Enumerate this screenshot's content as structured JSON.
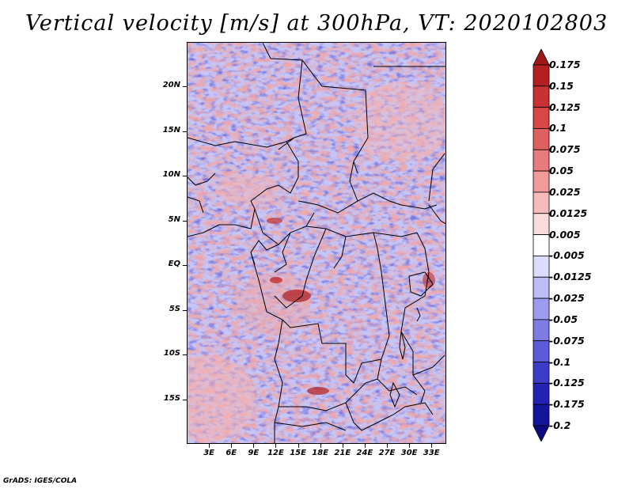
{
  "title": "Vertical velocity [m/s] at 300hPa, VT: 2020102803",
  "credit": "GrADS: IGES/COLA",
  "map": {
    "projection": "lat-lon",
    "lon_range": [
      0,
      35
    ],
    "lat_range": [
      -20,
      25
    ],
    "variable": "Vertical velocity",
    "units": "m/s",
    "level": "300hPa",
    "valid_time": "2020102803"
  },
  "y_ticks": [
    {
      "label": "20N",
      "lat": 20
    },
    {
      "label": "15N",
      "lat": 15
    },
    {
      "label": "10N",
      "lat": 10
    },
    {
      "label": "5N",
      "lat": 5
    },
    {
      "label": "EQ",
      "lat": 0
    },
    {
      "label": "5S",
      "lat": -5
    },
    {
      "label": "10S",
      "lat": -10
    },
    {
      "label": "15S",
      "lat": -15
    }
  ],
  "x_ticks": [
    {
      "label": "3E",
      "lon": 3
    },
    {
      "label": "6E",
      "lon": 6
    },
    {
      "label": "9E",
      "lon": 9
    },
    {
      "label": "12E",
      "lon": 12
    },
    {
      "label": "15E",
      "lon": 15
    },
    {
      "label": "18E",
      "lon": 18
    },
    {
      "label": "21E",
      "lon": 21
    },
    {
      "label": "24E",
      "lon": 24
    },
    {
      "label": "27E",
      "lon": 27
    },
    {
      "label": "30E",
      "lon": 30
    },
    {
      "label": "33E",
      "lon": 33
    }
  ],
  "colorbar": {
    "levels": [
      "0.175",
      "0.15",
      "0.125",
      "0.1",
      "0.075",
      "0.05",
      "0.025",
      "0.0125",
      "0.005",
      "-0.005",
      "-0.0125",
      "-0.025",
      "-0.05",
      "-0.075",
      "-0.1",
      "-0.125",
      "-0.175",
      "-0.2"
    ],
    "colors": [
      "#a01818",
      "#b42020",
      "#c83232",
      "#d84646",
      "#e06060",
      "#e87c7c",
      "#f09a9a",
      "#f6bcbc",
      "#fbdcdc",
      "#ffffff",
      "#dcdcff",
      "#bcbcf8",
      "#9c9cf0",
      "#7c7ce4",
      "#5c5cd8",
      "#3c3cc8",
      "#2222b4",
      "#14149c",
      "#0c0c82"
    ]
  }
}
